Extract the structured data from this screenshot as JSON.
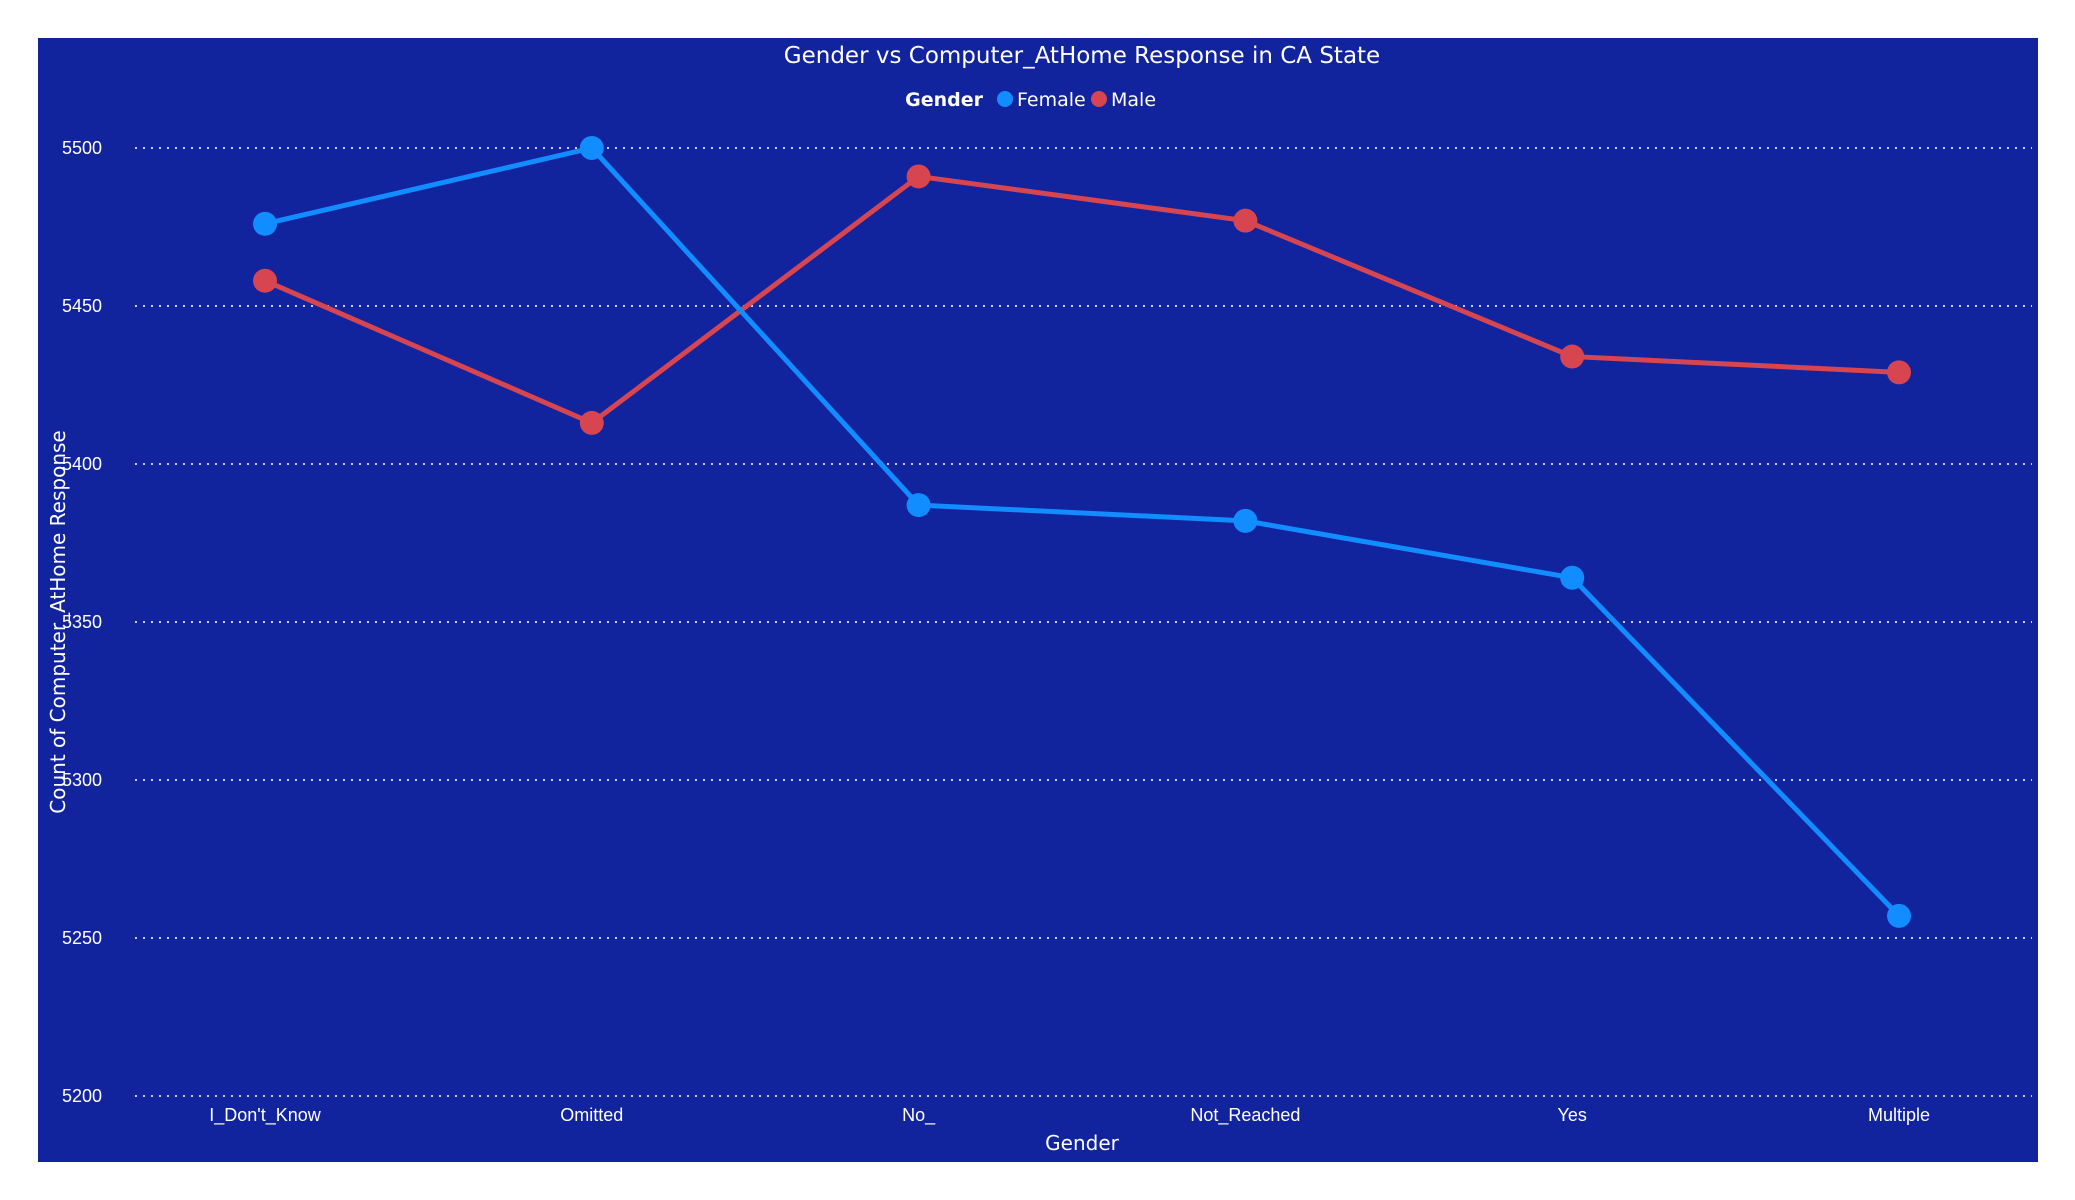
{
  "chart_data": {
    "type": "line",
    "title": "Gender vs Computer_AtHome Response in CA State",
    "xlabel": "Gender",
    "ylabel": "Count of Computer_AtHome Response",
    "categories": [
      "I_Don't_Know",
      "Omitted",
      "No_",
      "Not_Reached",
      "Yes",
      "Multiple"
    ],
    "ylim": [
      5200,
      5500
    ],
    "yticks": [
      5200,
      5250,
      5300,
      5350,
      5400,
      5450,
      5500
    ],
    "grid": true,
    "legend": {
      "title": "Gender",
      "placement": "top-center"
    },
    "series": [
      {
        "name": "Female",
        "color": "#118dff",
        "values": [
          5476,
          5500,
          5387,
          5382,
          5364,
          5257
        ]
      },
      {
        "name": "Male",
        "color": "#d64550",
        "values": [
          5458,
          5413,
          5491,
          5477,
          5434,
          5429
        ]
      }
    ]
  },
  "colors": {
    "background": "#12239e",
    "text": "#ffffff",
    "gridline": "#c9cfee"
  }
}
